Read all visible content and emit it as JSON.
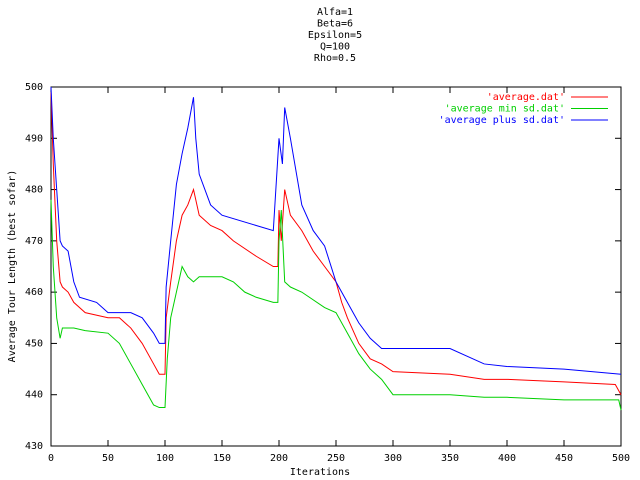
{
  "chart_data": {
    "type": "line",
    "title_lines": [
      "Alfa=1",
      "Beta=6",
      "Epsilon=5",
      "Q=100",
      "Rho=0.5"
    ],
    "x_label": "Iterations",
    "y_label": "Average Tour Length (best sofar)",
    "xlim": [
      0,
      500
    ],
    "xticks": [
      0,
      50,
      100,
      150,
      200,
      250,
      300,
      350,
      400,
      450,
      500
    ],
    "ylim": [
      430,
      500
    ],
    "yticks": [
      430,
      440,
      450,
      460,
      470,
      480,
      490,
      500
    ],
    "grid": false,
    "legend": "top-right",
    "series": [
      {
        "name": "'average.dat'",
        "color": "#ff0000",
        "x": [
          0,
          2,
          5,
          8,
          10,
          15,
          20,
          30,
          50,
          60,
          70,
          80,
          90,
          95,
          100,
          101,
          105,
          110,
          115,
          120,
          125,
          130,
          140,
          150,
          160,
          180,
          195,
          199,
          200,
          202,
          205,
          210,
          220,
          230,
          240,
          250,
          255,
          260,
          270,
          280,
          290,
          300,
          350,
          380,
          400,
          450,
          495,
          500
        ],
        "values": [
          499,
          485,
          470,
          462,
          461,
          460,
          458,
          456,
          455,
          455,
          453,
          450,
          446,
          444,
          444,
          455,
          462,
          470,
          475,
          477,
          480,
          475,
          473,
          472,
          470,
          467,
          465,
          465,
          476,
          470,
          480,
          475,
          472,
          468,
          465,
          462,
          458,
          455,
          450,
          447,
          446,
          444.5,
          444,
          443,
          443,
          442.5,
          442,
          440
        ]
      },
      {
        "name": "'average min sd.dat'",
        "color": "#00d000",
        "x": [
          0,
          2,
          5,
          8,
          10,
          20,
          30,
          50,
          60,
          70,
          80,
          90,
          95,
          100,
          102,
          105,
          110,
          115,
          120,
          125,
          130,
          150,
          160,
          170,
          180,
          195,
          199,
          200,
          202,
          205,
          210,
          220,
          240,
          250,
          260,
          270,
          280,
          290,
          300,
          350,
          380,
          400,
          450,
          498,
          500
        ],
        "values": [
          478,
          465,
          455,
          451,
          453,
          453,
          452.5,
          452,
          450,
          446,
          442,
          438,
          437.5,
          437.5,
          447,
          455,
          460,
          465,
          463,
          462,
          463,
          463,
          462,
          460,
          459,
          458,
          458,
          470,
          476,
          462,
          461,
          460,
          457,
          456,
          452,
          448,
          445,
          443,
          440,
          440,
          439.5,
          439.5,
          439,
          439,
          437
        ]
      },
      {
        "name": "'average plus sd.dat'",
        "color": "#0000ff",
        "x": [
          0,
          2,
          5,
          8,
          10,
          15,
          20,
          25,
          40,
          50,
          70,
          80,
          90,
          95,
          100,
          101,
          105,
          110,
          115,
          120,
          125,
          127,
          130,
          140,
          150,
          180,
          195,
          200,
          203,
          205,
          210,
          220,
          230,
          240,
          250,
          260,
          270,
          280,
          290,
          300,
          350,
          380,
          400,
          450,
          500
        ],
        "values": [
          500,
          490,
          480,
          470,
          469,
          468,
          462,
          459,
          458,
          456,
          456,
          455,
          452,
          450,
          450,
          461,
          470,
          481,
          487,
          492,
          498,
          490,
          483,
          477,
          475,
          473,
          472,
          490,
          485,
          496,
          490,
          477,
          472,
          469,
          462,
          458,
          454,
          451,
          449,
          449,
          449,
          446,
          445.5,
          445,
          444
        ]
      }
    ]
  }
}
